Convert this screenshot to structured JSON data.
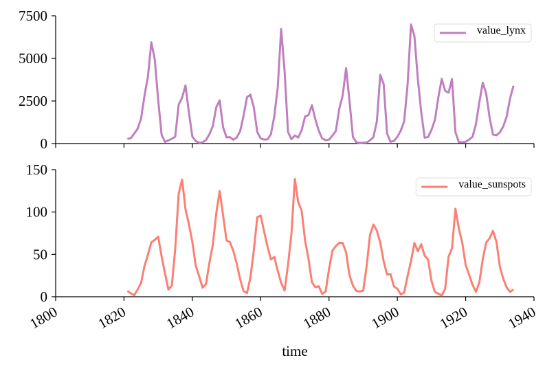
{
  "chart_data": [
    {
      "type": "line",
      "x": [
        1821,
        1822,
        1823,
        1824,
        1825,
        1826,
        1827,
        1828,
        1829,
        1830,
        1831,
        1832,
        1833,
        1834,
        1835,
        1836,
        1837,
        1838,
        1839,
        1840,
        1841,
        1842,
        1843,
        1844,
        1845,
        1846,
        1847,
        1848,
        1849,
        1850,
        1851,
        1852,
        1853,
        1854,
        1855,
        1856,
        1857,
        1858,
        1859,
        1860,
        1861,
        1862,
        1863,
        1864,
        1865,
        1866,
        1867,
        1868,
        1869,
        1870,
        1871,
        1872,
        1873,
        1874,
        1875,
        1876,
        1877,
        1878,
        1879,
        1880,
        1881,
        1882,
        1883,
        1884,
        1885,
        1886,
        1887,
        1888,
        1889,
        1890,
        1891,
        1892,
        1893,
        1894,
        1895,
        1896,
        1897,
        1898,
        1899,
        1900,
        1901,
        1902,
        1903,
        1904,
        1905,
        1906,
        1907,
        1908,
        1909,
        1910,
        1911,
        1912,
        1913,
        1914,
        1915,
        1916,
        1917,
        1918,
        1919,
        1920,
        1921,
        1922,
        1923,
        1924,
        1925,
        1926,
        1927,
        1928,
        1929,
        1930,
        1931,
        1932,
        1933,
        1934
      ],
      "series": [
        {
          "name": "value_lynx",
          "color": "#bf7fbf",
          "values": [
            269,
            321,
            585,
            871,
            1475,
            2821,
            3928,
            5943,
            4950,
            2577,
            523,
            98,
            184,
            279,
            409,
            2285,
            2685,
            3409,
            1824,
            409,
            151,
            45,
            68,
            213,
            546,
            1033,
            2129,
            2536,
            957,
            361,
            377,
            225,
            360,
            731,
            1638,
            2725,
            2871,
            2119,
            684,
            299,
            236,
            245,
            552,
            1623,
            3311,
            6721,
            4254,
            687,
            255,
            473,
            358,
            784,
            1594,
            1676,
            2251,
            1426,
            756,
            299,
            201,
            229,
            469,
            736,
            2042,
            2811,
            4431,
            2511,
            389,
            73,
            39,
            49,
            59,
            188,
            377,
            1292,
            4031,
            3495,
            587,
            105,
            153,
            387,
            758,
            1307,
            3465,
            6991,
            6313,
            3794,
            1836,
            345,
            382,
            808,
            1388,
            2713,
            3800,
            3091,
            2985,
            3790,
            674,
            81,
            80,
            108,
            229,
            399,
            1132,
            2432,
            3574,
            2935,
            1537,
            529,
            485,
            662,
            1000,
            1590,
            2657,
            3396
          ]
        }
      ],
      "xlim": [
        1800,
        1940
      ],
      "xticks": [
        1800,
        1820,
        1840,
        1860,
        1880,
        1900,
        1920,
        1940
      ],
      "ylim": [
        0,
        7500
      ],
      "yticks": [
        0,
        2500,
        5000,
        7500
      ],
      "legend": "upper right"
    },
    {
      "type": "line",
      "x": [
        1821,
        1822,
        1823,
        1824,
        1825,
        1826,
        1827,
        1828,
        1829,
        1830,
        1831,
        1832,
        1833,
        1834,
        1835,
        1836,
        1837,
        1838,
        1839,
        1840,
        1841,
        1842,
        1843,
        1844,
        1845,
        1846,
        1847,
        1848,
        1849,
        1850,
        1851,
        1852,
        1853,
        1854,
        1855,
        1856,
        1857,
        1858,
        1859,
        1860,
        1861,
        1862,
        1863,
        1864,
        1865,
        1866,
        1867,
        1868,
        1869,
        1870,
        1871,
        1872,
        1873,
        1874,
        1875,
        1876,
        1877,
        1878,
        1879,
        1880,
        1881,
        1882,
        1883,
        1884,
        1885,
        1886,
        1887,
        1888,
        1889,
        1890,
        1891,
        1892,
        1893,
        1894,
        1895,
        1896,
        1897,
        1898,
        1899,
        1900,
        1901,
        1902,
        1903,
        1904,
        1905,
        1906,
        1907,
        1908,
        1909,
        1910,
        1911,
        1912,
        1913,
        1914,
        1915,
        1916,
        1917,
        1918,
        1919,
        1920,
        1921,
        1922,
        1923,
        1924,
        1925,
        1926,
        1927,
        1928,
        1929,
        1930,
        1931,
        1932,
        1933,
        1934
      ],
      "series": [
        {
          "name": "value_sunspots",
          "color": "#fa8072",
          "values": [
            6.8,
            4.0,
            1.8,
            8.5,
            16.6,
            36.3,
            49.6,
            64.2,
            67.0,
            70.9,
            47.8,
            27.5,
            8.5,
            13.2,
            56.9,
            121.5,
            138.3,
            103.2,
            85.7,
            64.6,
            36.7,
            24.2,
            10.7,
            15.0,
            40.1,
            61.5,
            98.5,
            124.7,
            96.3,
            66.6,
            64.5,
            54.1,
            39.0,
            20.6,
            6.7,
            4.3,
            22.7,
            54.8,
            93.8,
            95.8,
            77.2,
            59.1,
            44.0,
            47.0,
            30.5,
            16.3,
            7.3,
            37.6,
            74.0,
            139.0,
            111.2,
            101.6,
            66.2,
            44.7,
            17.0,
            11.3,
            12.4,
            3.4,
            6.0,
            32.3,
            54.3,
            59.7,
            63.7,
            63.5,
            52.2,
            25.4,
            13.1,
            6.8,
            6.3,
            7.1,
            35.6,
            73.0,
            85.1,
            78.0,
            64.0,
            41.8,
            26.2,
            26.7,
            12.1,
            9.5,
            2.7,
            5.0,
            24.4,
            42.0,
            63.5,
            53.8,
            62.0,
            48.5,
            43.9,
            18.6,
            5.7,
            3.6,
            1.4,
            9.6,
            47.4,
            57.1,
            103.9,
            80.6,
            63.6,
            37.6,
            26.1,
            14.2,
            5.8,
            16.7,
            44.3,
            63.9,
            69.0,
            77.8,
            64.9,
            35.7,
            21.2,
            11.1,
            5.7,
            8.7
          ]
        }
      ],
      "xlim": [
        1800,
        1940
      ],
      "xticks": [
        1800,
        1820,
        1840,
        1860,
        1880,
        1900,
        1920,
        1940
      ],
      "ylim": [
        0,
        150
      ],
      "yticks": [
        0,
        50,
        100,
        150
      ],
      "legend": "upper right",
      "xlabel": "time"
    }
  ]
}
